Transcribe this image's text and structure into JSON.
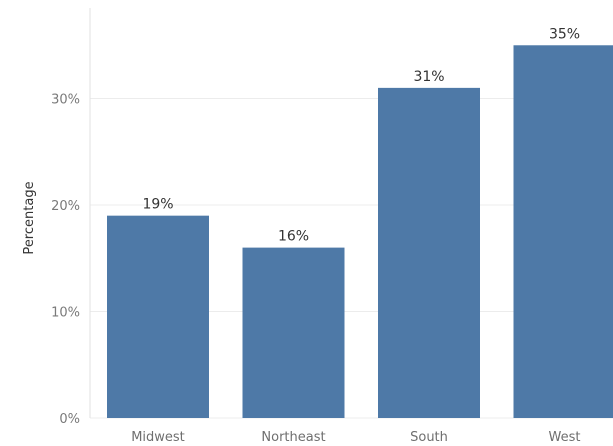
{
  "chart_data": {
    "type": "bar",
    "title": "",
    "xlabel": "",
    "ylabel": "Percentage",
    "categories": [
      "Midwest",
      "Northeast",
      "South",
      "West"
    ],
    "values": [
      19,
      16,
      31,
      35
    ],
    "data_labels": [
      "19%",
      "16%",
      "31%",
      "35%"
    ],
    "y_ticks": [
      {
        "value": 0,
        "label": "0%"
      },
      {
        "value": 10,
        "label": "10%"
      },
      {
        "value": 20,
        "label": "20%"
      },
      {
        "value": 30,
        "label": "30%"
      }
    ],
    "ylim": [
      0,
      38.5
    ],
    "grid": true,
    "legend": "none",
    "bar_color": "#4e79a7"
  }
}
